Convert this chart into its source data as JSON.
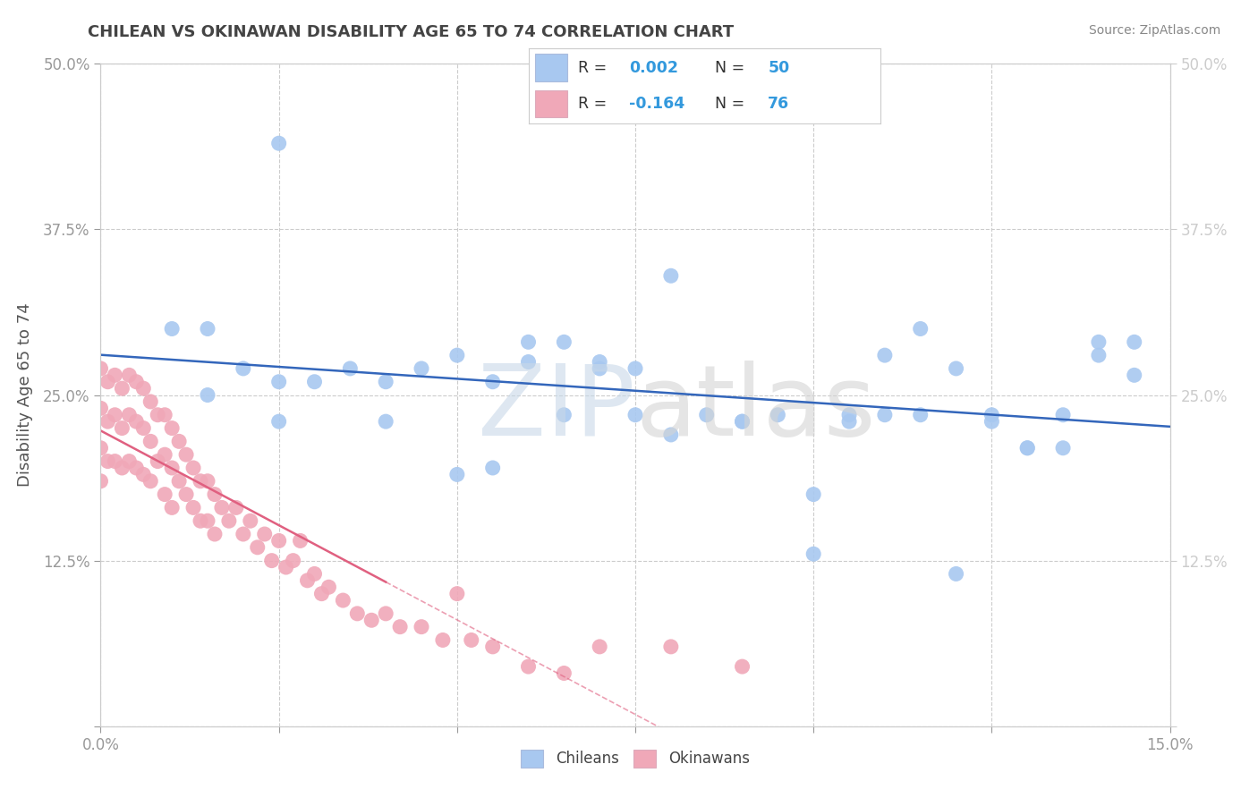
{
  "title": "CHILEAN VS OKINAWAN DISABILITY AGE 65 TO 74 CORRELATION CHART",
  "source_text": "Source: ZipAtlas.com",
  "ylabel": "Disability Age 65 to 74",
  "xlim": [
    0.0,
    0.15
  ],
  "ylim": [
    0.0,
    0.5
  ],
  "xticks": [
    0.0,
    0.025,
    0.05,
    0.075,
    0.1,
    0.125,
    0.15
  ],
  "yticks": [
    0.0,
    0.125,
    0.25,
    0.375,
    0.5
  ],
  "chilean_color": "#a8c8f0",
  "okinawan_color": "#f0a8b8",
  "chilean_line_color": "#3366bb",
  "okinawan_line_color": "#e06080",
  "r_chilean": 0.002,
  "n_chilean": 50,
  "r_okinawan": -0.164,
  "n_okinawan": 76,
  "background_color": "#ffffff",
  "grid_color": "#cccccc",
  "chileans_x": [
    0.025,
    0.01,
    0.015,
    0.015,
    0.02,
    0.025,
    0.025,
    0.03,
    0.035,
    0.04,
    0.04,
    0.045,
    0.05,
    0.055,
    0.06,
    0.065,
    0.07,
    0.075,
    0.08,
    0.09,
    0.1,
    0.105,
    0.11,
    0.115,
    0.12,
    0.125,
    0.13,
    0.135,
    0.14,
    0.145,
    0.05,
    0.06,
    0.07,
    0.08,
    0.09,
    0.1,
    0.11,
    0.12,
    0.13,
    0.14,
    0.055,
    0.065,
    0.075,
    0.085,
    0.095,
    0.105,
    0.115,
    0.125,
    0.135,
    0.145
  ],
  "chileans_y": [
    0.44,
    0.3,
    0.25,
    0.3,
    0.27,
    0.26,
    0.23,
    0.26,
    0.27,
    0.26,
    0.23,
    0.27,
    0.28,
    0.26,
    0.29,
    0.29,
    0.27,
    0.27,
    0.22,
    0.23,
    0.175,
    0.23,
    0.28,
    0.3,
    0.27,
    0.23,
    0.21,
    0.21,
    0.28,
    0.29,
    0.19,
    0.275,
    0.275,
    0.34,
    0.23,
    0.13,
    0.235,
    0.115,
    0.21,
    0.29,
    0.195,
    0.235,
    0.235,
    0.235,
    0.235,
    0.235,
    0.235,
    0.235,
    0.235,
    0.265
  ],
  "okinawans_x": [
    0.0,
    0.0,
    0.0,
    0.0,
    0.001,
    0.001,
    0.001,
    0.002,
    0.002,
    0.002,
    0.003,
    0.003,
    0.003,
    0.004,
    0.004,
    0.004,
    0.005,
    0.005,
    0.005,
    0.006,
    0.006,
    0.006,
    0.007,
    0.007,
    0.007,
    0.008,
    0.008,
    0.009,
    0.009,
    0.009,
    0.01,
    0.01,
    0.01,
    0.011,
    0.011,
    0.012,
    0.012,
    0.013,
    0.013,
    0.014,
    0.014,
    0.015,
    0.015,
    0.016,
    0.016,
    0.017,
    0.018,
    0.019,
    0.02,
    0.021,
    0.022,
    0.023,
    0.024,
    0.025,
    0.026,
    0.027,
    0.028,
    0.029,
    0.03,
    0.031,
    0.032,
    0.034,
    0.036,
    0.038,
    0.04,
    0.042,
    0.045,
    0.048,
    0.052,
    0.055,
    0.06,
    0.065,
    0.07,
    0.08,
    0.09,
    0.05
  ],
  "okinawans_y": [
    0.27,
    0.24,
    0.21,
    0.185,
    0.26,
    0.23,
    0.2,
    0.265,
    0.235,
    0.2,
    0.255,
    0.225,
    0.195,
    0.265,
    0.235,
    0.2,
    0.26,
    0.23,
    0.195,
    0.255,
    0.225,
    0.19,
    0.245,
    0.215,
    0.185,
    0.235,
    0.2,
    0.235,
    0.205,
    0.175,
    0.225,
    0.195,
    0.165,
    0.215,
    0.185,
    0.205,
    0.175,
    0.195,
    0.165,
    0.185,
    0.155,
    0.185,
    0.155,
    0.175,
    0.145,
    0.165,
    0.155,
    0.165,
    0.145,
    0.155,
    0.135,
    0.145,
    0.125,
    0.14,
    0.12,
    0.125,
    0.14,
    0.11,
    0.115,
    0.1,
    0.105,
    0.095,
    0.085,
    0.08,
    0.085,
    0.075,
    0.075,
    0.065,
    0.065,
    0.06,
    0.045,
    0.04,
    0.06,
    0.06,
    0.045,
    0.1
  ]
}
